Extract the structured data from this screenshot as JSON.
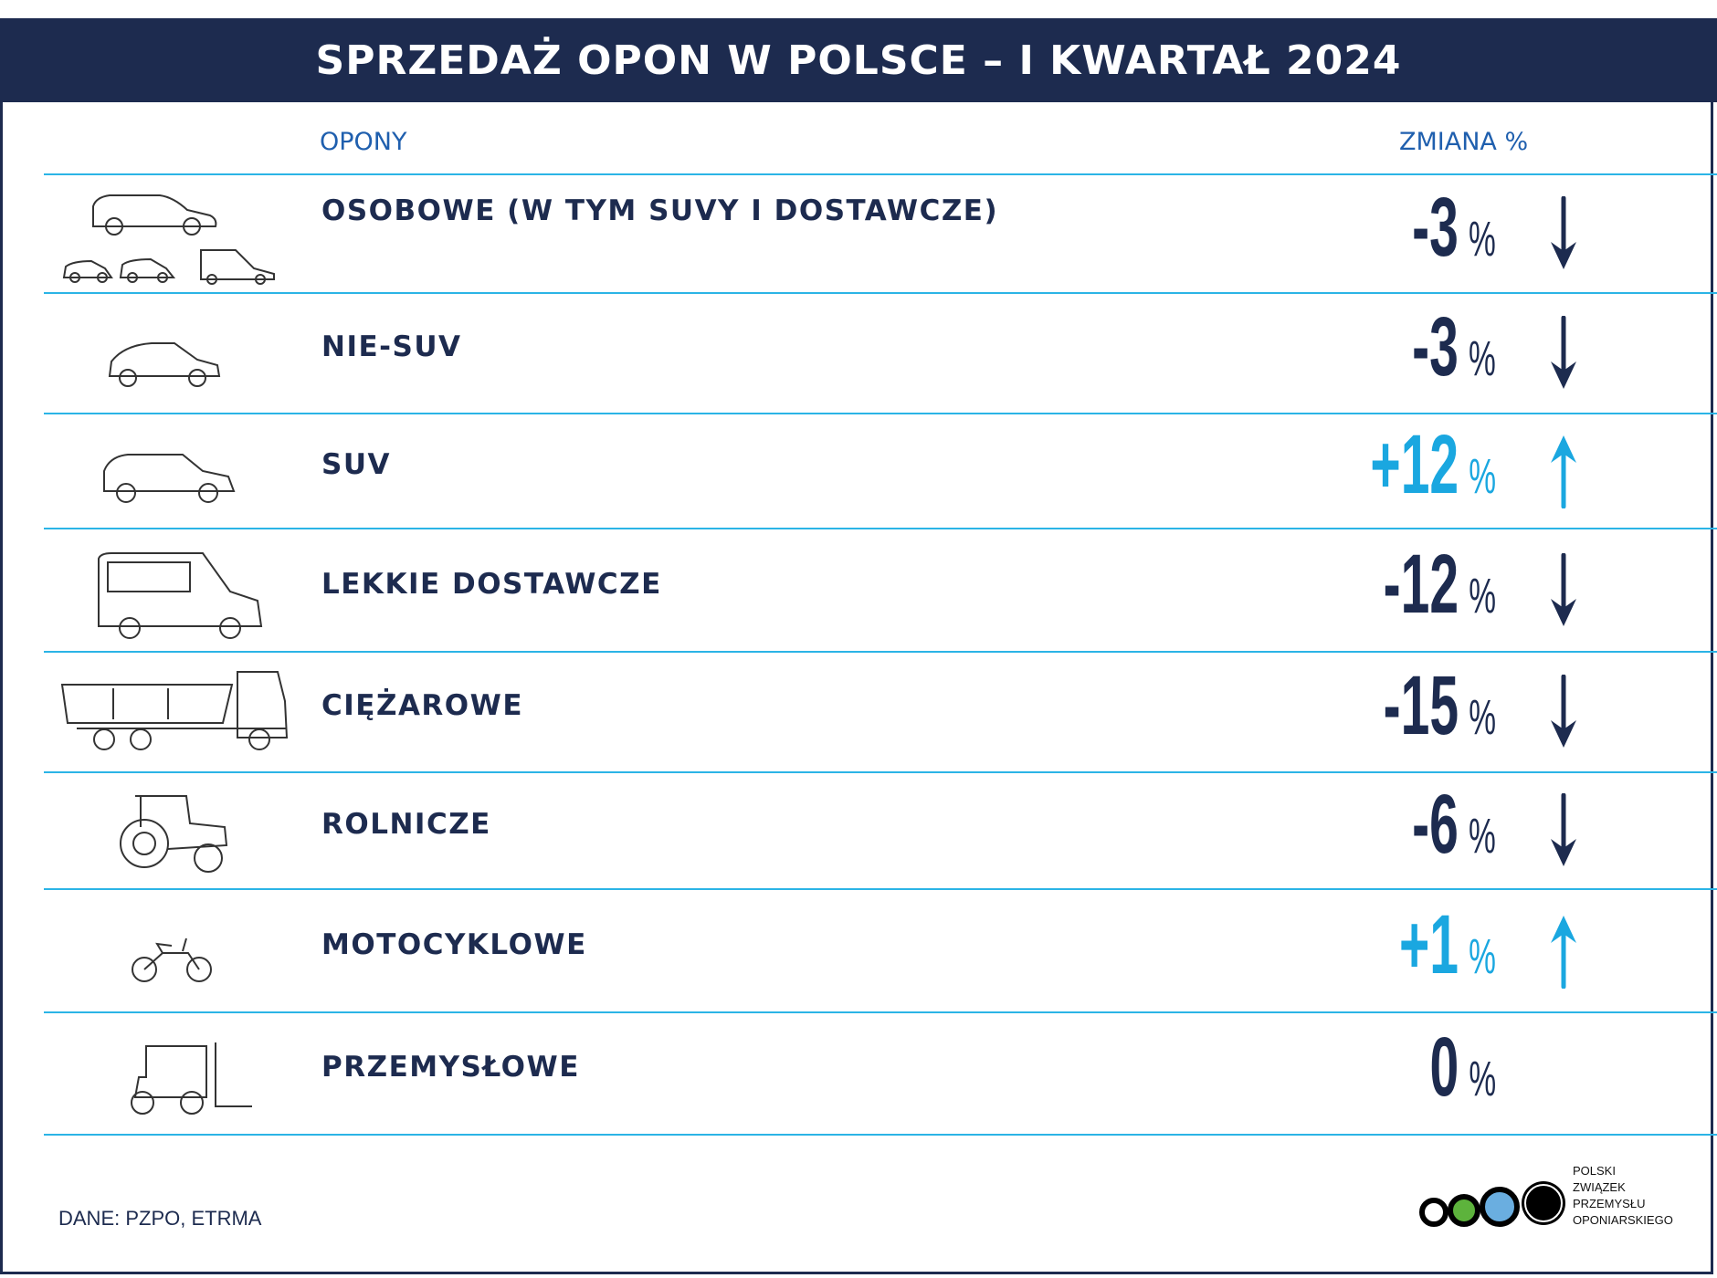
{
  "title": "SPRZEDAŻ OPON W POLSCE – I KWARTAŁ 2024",
  "columns": {
    "tires": "OPONY",
    "change": "ZMIANA %"
  },
  "colors": {
    "navy": "#1d2b4f",
    "increase": "#1aa7e0",
    "line": "#2bb4e6",
    "header_text": "#1f5fae"
  },
  "rows": [
    {
      "label": "OSOBOWE (W TYM SUVY I DOSTAWCZE)",
      "value": "-3",
      "unit": "%",
      "trend": "down",
      "icon": "cars-group-icon"
    },
    {
      "label": "NIE-SUV",
      "value": "-3",
      "unit": "%",
      "trend": "down",
      "icon": "hatchback-car-icon"
    },
    {
      "label": "SUV",
      "value": "+12",
      "unit": "%",
      "trend": "up",
      "icon": "suv-icon"
    },
    {
      "label": "LEKKIE DOSTAWCZE",
      "value": "-12",
      "unit": "%",
      "trend": "down",
      "icon": "van-icon"
    },
    {
      "label": "CIĘŻAROWE",
      "value": "-15",
      "unit": "%",
      "trend": "down",
      "icon": "dump-truck-icon"
    },
    {
      "label": "ROLNICZE",
      "value": "-6",
      "unit": "%",
      "trend": "down",
      "icon": "tractor-icon"
    },
    {
      "label": "MOTOCYKLOWE",
      "value": "+1",
      "unit": "%",
      "trend": "up",
      "icon": "motorcycle-icon"
    },
    {
      "label": "PRZEMYSŁOWE",
      "value": "0",
      "unit": "%",
      "trend": "none",
      "icon": "forklift-icon"
    }
  ],
  "source": "DANE: PZPO, ETRMA",
  "logo": {
    "lines": [
      "POLSKI",
      "ZWIĄZEK",
      "PRZEMYSŁU",
      "OPONIARSKIEGO"
    ]
  }
}
